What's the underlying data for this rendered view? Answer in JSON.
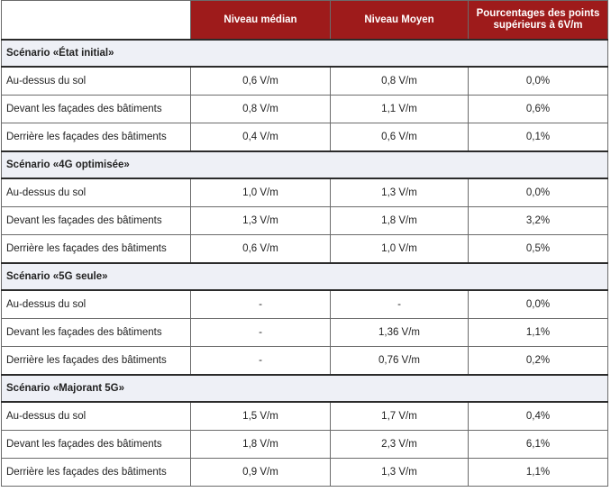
{
  "header": {
    "col1": "",
    "col2": "Niveau médian",
    "col3": "Niveau Moyen",
    "col4": "Pourcentages des points supérieurs à 6V/m"
  },
  "sections": [
    {
      "title": "Scénario «État initial»",
      "rows": [
        {
          "label": "Au-dessus du sol",
          "median": "0,6 V/m",
          "moyen": "0,8 V/m",
          "pct": "0,0%"
        },
        {
          "label": "Devant les façades des bâtiments",
          "median": "0,8 V/m",
          "moyen": "1,1 V/m",
          "pct": "0,6%"
        },
        {
          "label": "Derrière les façades des bâtiments",
          "median": "0,4 V/m",
          "moyen": "0,6 V/m",
          "pct": "0,1%"
        }
      ]
    },
    {
      "title": "Scénario «4G optimisée»",
      "rows": [
        {
          "label": "Au-dessus du sol",
          "median": "1,0 V/m",
          "moyen": "1,3 V/m",
          "pct": "0,0%"
        },
        {
          "label": "Devant les façades des bâtiments",
          "median": "1,3 V/m",
          "moyen": "1,8 V/m",
          "pct": "3,2%"
        },
        {
          "label": "Derrière les façades des bâtiments",
          "median": "0,6 V/m",
          "moyen": "1,0 V/m",
          "pct": "0,5%"
        }
      ]
    },
    {
      "title": "Scénario «5G seule»",
      "rows": [
        {
          "label": "Au-dessus du sol",
          "median": "-",
          "moyen": "-",
          "pct": "0,0%"
        },
        {
          "label": "Devant les façades des bâtiments",
          "median": "-",
          "moyen": "1,36 V/m",
          "pct": "1,1%"
        },
        {
          "label": "Derrière les façades des bâtiments",
          "median": "-",
          "moyen": "0,76 V/m",
          "pct": "0,2%"
        }
      ]
    },
    {
      "title": "Scénario «Majorant 5G»",
      "rows": [
        {
          "label": "Au-dessus du sol",
          "median": "1,5 V/m",
          "moyen": "1,7 V/m",
          "pct": "0,4%"
        },
        {
          "label": "Devant les façades des bâtiments",
          "median": "1,8 V/m",
          "moyen": "2,3 V/m",
          "pct": "6,1%"
        },
        {
          "label": "Derrière les façades des bâtiments",
          "median": "0,9 V/m",
          "moyen": "1,3 V/m",
          "pct": "1,1%"
        }
      ]
    }
  ]
}
